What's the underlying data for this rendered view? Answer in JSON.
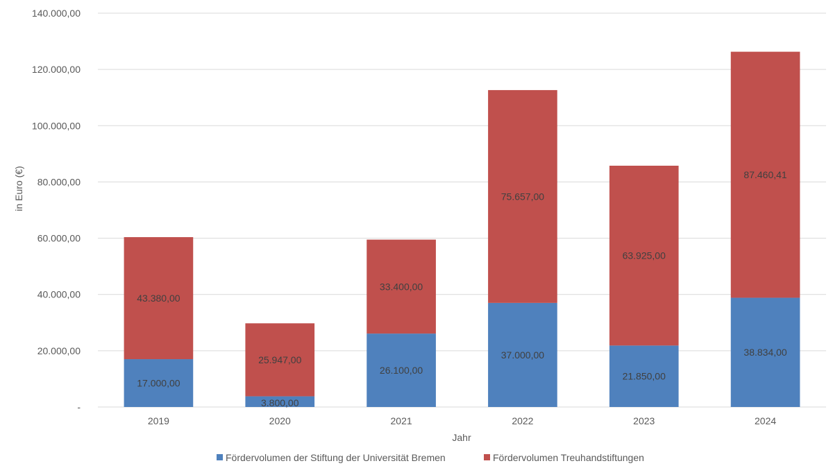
{
  "chart_data": {
    "type": "bar",
    "stacked": true,
    "title": "",
    "xlabel": "Jahr",
    "ylabel": "in Euro (€)",
    "ylim": [
      0,
      140000
    ],
    "ytick_step": 20000,
    "ytick_labels": [
      "-",
      "20.000,00",
      "40.000,00",
      "60.000,00",
      "80.000,00",
      "100.000,00",
      "120.000,00",
      "140.000,00"
    ],
    "grid": true,
    "legend_position": "bottom",
    "categories": [
      "2019",
      "2020",
      "2021",
      "2022",
      "2023",
      "2024"
    ],
    "series": [
      {
        "name": "Fördervolumen der Stiftung der Universität Bremen",
        "color": "#4F81BD",
        "values": [
          17000,
          3800,
          26100,
          37000,
          21850,
          38834
        ],
        "labels": [
          "17.000,00",
          "3.800,00",
          "26.100,00",
          "37.000,00",
          "21.850,00",
          "38.834,00"
        ]
      },
      {
        "name": "Fördervolumen Treuhandstiftungen",
        "color": "#C0504D",
        "values": [
          43380,
          25947,
          33400,
          75657,
          63925,
          87460.41
        ],
        "labels": [
          "43.380,00",
          "25.947,00",
          "33.400,00",
          "75.657,00",
          "63.925,00",
          "87.460,41"
        ]
      }
    ]
  }
}
